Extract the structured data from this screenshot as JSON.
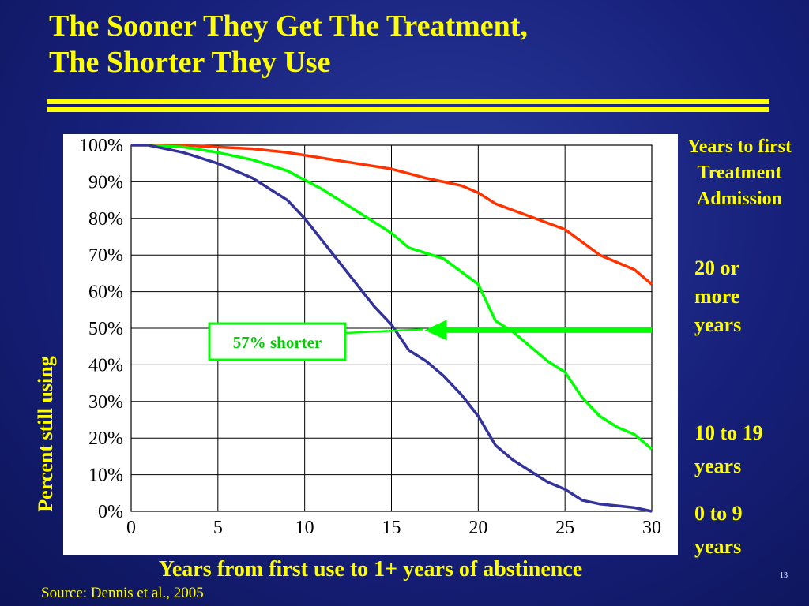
{
  "slide": {
    "title_line1": "The Sooner They Get The Treatment,",
    "title_line2": "The Shorter They Use",
    "source": "Source: Dennis et al., 2005",
    "page_number": "13"
  },
  "chart_data": {
    "type": "line",
    "title": "",
    "xlabel": "Years from first use to 1+ years of abstinence",
    "ylabel": "Percent still using",
    "xlim": [
      0,
      30
    ],
    "ylim": [
      0,
      100
    ],
    "x_ticks": [
      "0",
      "5",
      "10",
      "15",
      "20",
      "25",
      "30"
    ],
    "y_ticks": [
      "0%",
      "10%",
      "20%",
      "30%",
      "40%",
      "50%",
      "60%",
      "70%",
      "80%",
      "90%",
      "100%"
    ],
    "grid": true,
    "legend_title": "Years to first Treatment Admission",
    "legend_placement": "right",
    "series": [
      {
        "name": "20 or more years",
        "color": "#ff3300",
        "x": [
          1,
          3,
          5,
          7,
          9,
          11,
          13,
          15,
          17,
          19,
          20,
          21,
          23,
          25,
          27,
          29,
          30
        ],
        "y": [
          100,
          100,
          99.5,
          99,
          98,
          96.5,
          95,
          93.5,
          91,
          89,
          87,
          84,
          80.5,
          77,
          70,
          66,
          62
        ]
      },
      {
        "name": "10 to 19 years",
        "color": "#00ff00",
        "x": [
          1,
          3,
          5,
          7,
          9,
          11,
          13,
          15,
          16,
          18,
          20,
          21,
          22,
          23,
          24,
          25,
          26,
          27,
          28,
          29,
          30
        ],
        "y": [
          100,
          99.5,
          98,
          96,
          93,
          88,
          82,
          76,
          72,
          69,
          62,
          52,
          49,
          45,
          41,
          38,
          31,
          26,
          23,
          21,
          17
        ]
      },
      {
        "name": "0 to 9 years",
        "color": "#33339a",
        "x": [
          0,
          1,
          3,
          5,
          7,
          9,
          10,
          11,
          12,
          14,
          15,
          16,
          17,
          18,
          19,
          20,
          21,
          22,
          23,
          24,
          25,
          26,
          27,
          28,
          29,
          30
        ],
        "y": [
          100,
          100,
          98,
          95,
          91,
          85,
          80,
          74,
          68,
          56,
          51,
          44,
          41,
          37,
          32,
          26,
          18,
          14,
          11,
          8,
          6,
          3,
          2,
          1.5,
          1,
          0
        ]
      }
    ],
    "annotation": {
      "text": "57% shorter",
      "color": "#00cc00",
      "arrow_from": [
        30,
        49.5
      ],
      "arrow_to": [
        17,
        49.5
      ]
    }
  }
}
